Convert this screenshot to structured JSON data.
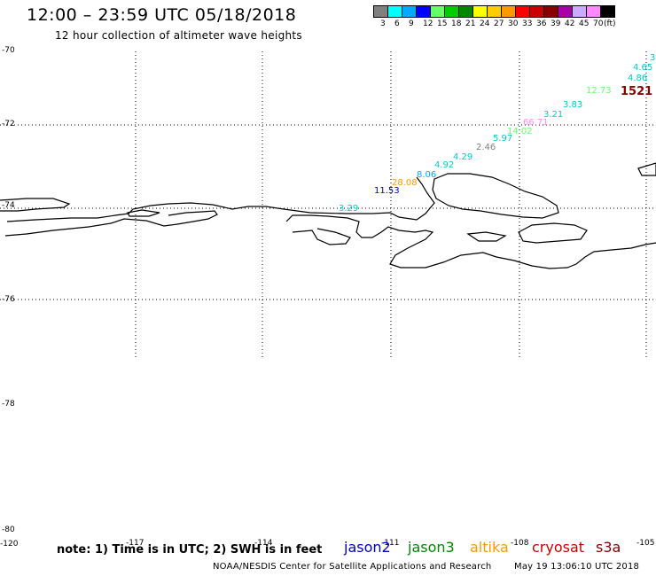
{
  "header": {
    "title": "12:00 – 23:59 UTC 05/18/2018",
    "subtitle": "12 hour collection of altimeter wave heights"
  },
  "colorbar": {
    "colors": [
      "#808080",
      "#00ffff",
      "#00aaff",
      "#0000ff",
      "#66ff66",
      "#00cc00",
      "#008800",
      "#ffff00",
      "#ffcc00",
      "#ff9900",
      "#ff0000",
      "#cc0000",
      "#880000",
      "#aa00aa",
      "#ccaaff",
      "#ff88ff",
      "#000000"
    ],
    "labels": [
      "3",
      "6",
      "9",
      "12",
      "15",
      "18",
      "21",
      "24",
      "27",
      "30",
      "33",
      "36",
      "39",
      "42",
      "45",
      "70",
      "(ft)"
    ]
  },
  "axes": {
    "lat_labels": [
      "-70",
      "-72",
      "-74",
      "-76",
      "-78",
      "-80"
    ],
    "lon_labels": [
      "-120",
      "-117",
      "-114",
      "-111",
      "-108",
      "-105"
    ]
  },
  "wave_heights": [
    {
      "text": "3.29",
      "color": "#00cccc"
    },
    {
      "text": "11.53",
      "color": "#0000cc"
    },
    {
      "text": "28.08",
      "color": "#ff9900"
    },
    {
      "text": "8.06",
      "color": "#00aaff"
    },
    {
      "text": "4.92",
      "color": "#00cccc"
    },
    {
      "text": "4.29",
      "color": "#00cccc"
    },
    {
      "text": "2.46",
      "color": "#808080"
    },
    {
      "text": "5.97",
      "color": "#00cccc"
    },
    {
      "text": "14.02",
      "color": "#66ff66"
    },
    {
      "text": "66.71",
      "color": "#ff88ff"
    },
    {
      "text": "3.21",
      "color": "#00cccc"
    },
    {
      "text": "3.83",
      "color": "#00cccc"
    },
    {
      "text": "12.73",
      "color": "#66ff66"
    },
    {
      "text": "1521",
      "color": "#880000"
    },
    {
      "text": "4.86",
      "color": "#00cccc"
    },
    {
      "text": "4.65",
      "color": "#00cccc"
    },
    {
      "text": "3",
      "color": "#00cccc"
    }
  ],
  "footer": {
    "note": "note: 1) Time is in UTC; 2) SWH is in feet",
    "satellites": [
      {
        "name": "jason2",
        "color": "#0000cc"
      },
      {
        "name": "jason3",
        "color": "#008800"
      },
      {
        "name": "altika",
        "color": "#ff9900"
      },
      {
        "name": "cryosat",
        "color": "#cc0000"
      },
      {
        "name": "s3a",
        "color": "#880000"
      }
    ],
    "credit": "NOAA/NESDIS Center for Satellite Applications and Research",
    "timestamp": "May 19 13:06:10 UTC 2018"
  }
}
